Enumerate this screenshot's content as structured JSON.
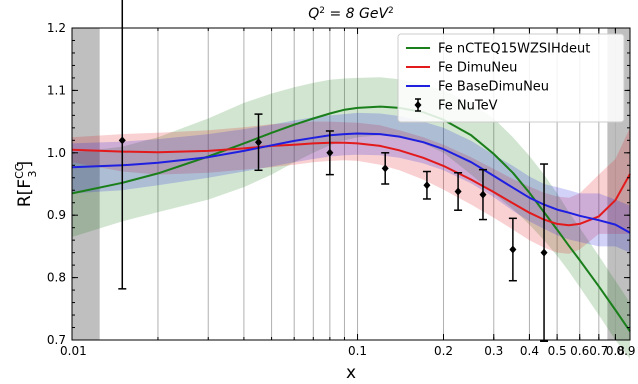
{
  "chart_data": {
    "type": "line",
    "title": "Q² = 8 GeV²",
    "xlabel": "x",
    "ylabel": "R[F₃^CC]",
    "xscale": "log",
    "xlim": [
      0.01,
      0.9
    ],
    "ylim": [
      0.7,
      1.2
    ],
    "grid": "vertical",
    "legend_position": "top-right",
    "x_tick_labels": [
      {
        "x": 0.01,
        "label": "0.01"
      },
      {
        "x": 0.1,
        "label": "0.1"
      },
      {
        "x": 0.2,
        "label": "0.2"
      },
      {
        "x": 0.3,
        "label": "0.3"
      },
      {
        "x": 0.4,
        "label": "0.4"
      },
      {
        "x": 0.5,
        "label": "0.5"
      },
      {
        "x": 0.6,
        "label": "0.6"
      },
      {
        "x": 0.7,
        "label": "0.7"
      },
      {
        "x": 0.8,
        "label": "0.8"
      },
      {
        "x": 0.9,
        "label": "0.9"
      }
    ],
    "x_grid": [
      0.02,
      0.03,
      0.04,
      0.05,
      0.06,
      0.07,
      0.08,
      0.09,
      0.1,
      0.2,
      0.3,
      0.4,
      0.5,
      0.6,
      0.7,
      0.8
    ],
    "y_ticks": [
      0.7,
      0.8,
      0.9,
      1.0,
      1.1,
      1.2
    ],
    "y_tick_labels": [
      "0.7",
      "0.8",
      "0.9",
      "1.0",
      "1.1",
      "1.2"
    ],
    "excluded_regions": [
      {
        "from": 0.01,
        "to": 0.0125,
        "color": "#bfbfbf"
      },
      {
        "from": 0.75,
        "to": 0.9,
        "color": "#bfbfbf"
      }
    ],
    "series": [
      {
        "name": "Fe nCTEQ15WZSIHdeut",
        "color": "#1a7f1a",
        "x": [
          0.01,
          0.015,
          0.02,
          0.03,
          0.04,
          0.05,
          0.06,
          0.07,
          0.08,
          0.09,
          0.1,
          0.12,
          0.14,
          0.17,
          0.2,
          0.25,
          0.3,
          0.35,
          0.4,
          0.45,
          0.5,
          0.55,
          0.6,
          0.7,
          0.8,
          0.9
        ],
        "y": [
          0.935,
          0.952,
          0.967,
          0.994,
          1.015,
          1.032,
          1.045,
          1.055,
          1.063,
          1.069,
          1.072,
          1.074,
          1.072,
          1.065,
          1.053,
          1.028,
          0.998,
          0.968,
          0.936,
          0.905,
          0.877,
          0.851,
          0.828,
          0.786,
          0.748,
          0.714
        ],
        "lower": [
          0.865,
          0.89,
          0.905,
          0.925,
          0.945,
          0.965,
          0.985,
          1.0,
          1.012,
          1.02,
          1.025,
          1.028,
          1.025,
          1.015,
          1.0,
          0.965,
          0.935,
          0.91,
          0.885,
          0.86,
          0.835,
          0.81,
          0.785,
          0.74,
          0.7,
          0.67
        ],
        "upper": [
          1.0,
          1.01,
          1.025,
          1.055,
          1.08,
          1.095,
          1.105,
          1.112,
          1.117,
          1.119,
          1.12,
          1.121,
          1.118,
          1.11,
          1.1,
          1.08,
          1.055,
          1.025,
          0.995,
          0.965,
          0.935,
          0.905,
          0.88,
          0.835,
          0.795,
          0.76
        ]
      },
      {
        "name": "Fe DimuNeu",
        "color": "#e31a1c",
        "x": [
          0.01,
          0.015,
          0.02,
          0.03,
          0.04,
          0.05,
          0.06,
          0.07,
          0.08,
          0.09,
          0.1,
          0.12,
          0.14,
          0.17,
          0.2,
          0.25,
          0.3,
          0.35,
          0.4,
          0.45,
          0.5,
          0.55,
          0.6,
          0.7,
          0.8,
          0.9
        ],
        "y": [
          1.005,
          1.002,
          1.001,
          1.003,
          1.007,
          1.011,
          1.013,
          1.015,
          1.016,
          1.016,
          1.015,
          1.011,
          1.004,
          0.992,
          0.979,
          0.957,
          0.937,
          0.919,
          0.904,
          0.893,
          0.886,
          0.884,
          0.886,
          0.898,
          0.924,
          0.966
        ],
        "lower": [
          0.985,
          0.97,
          0.965,
          0.968,
          0.973,
          0.977,
          0.981,
          0.985,
          0.987,
          0.988,
          0.987,
          0.981,
          0.972,
          0.957,
          0.941,
          0.917,
          0.896,
          0.877,
          0.86,
          0.848,
          0.84,
          0.838,
          0.845,
          0.87,
          0.87,
          0.87
        ],
        "upper": [
          1.025,
          1.03,
          1.032,
          1.036,
          1.041,
          1.046,
          1.048,
          1.05,
          1.05,
          1.049,
          1.048,
          1.044,
          1.036,
          1.025,
          1.013,
          0.993,
          0.974,
          0.958,
          0.946,
          0.936,
          0.93,
          0.928,
          0.935,
          0.965,
          0.99,
          1.04
        ]
      },
      {
        "name": "Fe BaseDimuNeu",
        "color": "#1f1fe0",
        "x": [
          0.01,
          0.015,
          0.02,
          0.03,
          0.04,
          0.05,
          0.06,
          0.07,
          0.08,
          0.09,
          0.1,
          0.12,
          0.14,
          0.17,
          0.2,
          0.25,
          0.3,
          0.35,
          0.4,
          0.45,
          0.5,
          0.55,
          0.6,
          0.7,
          0.8,
          0.9
        ],
        "y": [
          0.977,
          0.98,
          0.984,
          0.993,
          1.003,
          1.012,
          1.019,
          1.024,
          1.028,
          1.03,
          1.031,
          1.03,
          1.026,
          1.017,
          1.006,
          0.985,
          0.963,
          0.944,
          0.928,
          0.917,
          0.909,
          0.904,
          0.899,
          0.892,
          0.885,
          0.872
        ],
        "lower": [
          0.935,
          0.94,
          0.948,
          0.96,
          0.97,
          0.978,
          0.985,
          0.99,
          0.994,
          0.996,
          0.997,
          0.996,
          0.992,
          0.983,
          0.972,
          0.951,
          0.929,
          0.907,
          0.89,
          0.878,
          0.868,
          0.861,
          0.857,
          0.85,
          0.85,
          0.84
        ],
        "upper": [
          1.015,
          1.018,
          1.022,
          1.03,
          1.038,
          1.045,
          1.052,
          1.057,
          1.06,
          1.062,
          1.064,
          1.063,
          1.059,
          1.05,
          1.04,
          1.019,
          0.997,
          0.979,
          0.962,
          0.95,
          0.945,
          0.94,
          0.935,
          0.935,
          0.925,
          0.915
        ]
      }
    ],
    "points": {
      "name": "Fe NuTeV",
      "color": "#000000",
      "x": [
        0.015,
        0.045,
        0.08,
        0.125,
        0.175,
        0.225,
        0.275,
        0.35,
        0.45
      ],
      "y": [
        1.02,
        1.017,
        1.0,
        0.975,
        0.948,
        0.938,
        0.933,
        0.845,
        0.84
      ],
      "err": [
        0.238,
        0.045,
        0.035,
        0.025,
        0.022,
        0.03,
        0.04,
        0.05,
        0.142
      ]
    }
  }
}
